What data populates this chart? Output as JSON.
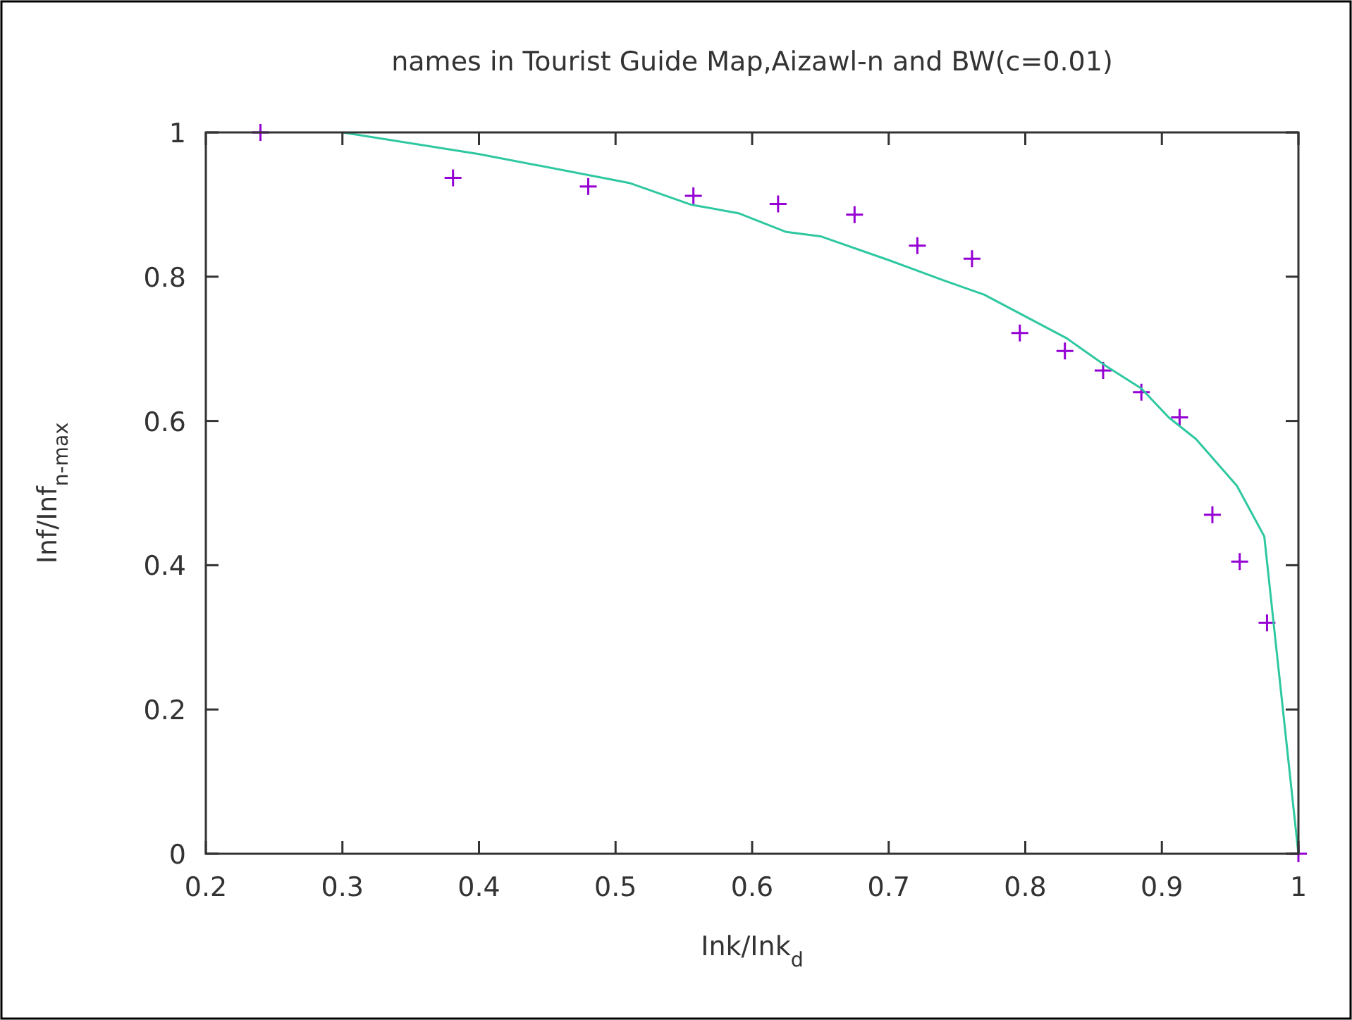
{
  "chart_data": {
    "type": "scatter",
    "title": "names in Tourist Guide Map,Aizawl-n and BW(c=0.01)",
    "xlabel": "Ink/Ink$_{d}$",
    "ylabel": "Inf/Inf$_{n-max}$",
    "xlim": [
      0.2,
      1
    ],
    "ylim": [
      0,
      1
    ],
    "xticks": [
      0.2,
      0.3,
      0.4,
      0.5,
      0.6,
      0.7,
      0.8,
      0.9,
      1
    ],
    "yticks": [
      0,
      0.2,
      0.4,
      0.6,
      0.8,
      1
    ],
    "grid": false,
    "series": [
      {
        "color": "#9400d3",
        "marker": "cross",
        "x": [
          0.24,
          0.381,
          0.48,
          0.557,
          0.619,
          0.675,
          0.721,
          0.761,
          0.796,
          0.829,
          0.857,
          0.885,
          0.913,
          0.937,
          0.957,
          0.977,
          1
        ],
        "values": [
          1.0,
          0.937,
          0.925,
          0.912,
          0.901,
          0.886,
          0.843,
          0.825,
          0.722,
          0.697,
          0.67,
          0.64,
          0.605,
          0.47,
          0.405,
          0.32,
          0
        ]
      },
      {
        "type": "line",
        "color": "#2ec8a0",
        "marker": "none",
        "line_style": "solid",
        "x": [
          0.3,
          0.4,
          0.51,
          0.555,
          0.59,
          0.625,
          0.65,
          0.7,
          0.74,
          0.77,
          0.8,
          0.83,
          0.86,
          0.885,
          0.905,
          0.925,
          0.955,
          0.975,
          1
        ],
        "values": [
          1.0,
          0.97,
          0.93,
          0.9,
          0.888,
          0.862,
          0.856,
          0.823,
          0.795,
          0.775,
          0.745,
          0.715,
          0.675,
          0.645,
          0.605,
          0.575,
          0.51,
          0.44,
          0
        ]
      }
    ]
  }
}
